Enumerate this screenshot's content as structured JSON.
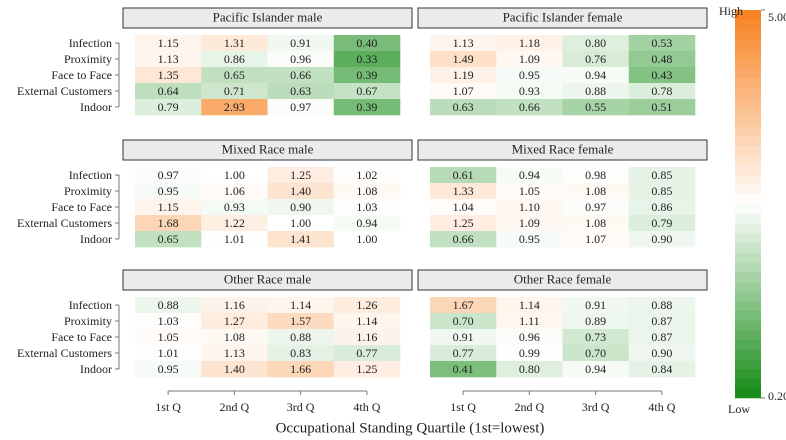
{
  "chart_data": {
    "type": "heatmap",
    "x_label": "Occupational Standing Quartile (1st=lowest)",
    "x_categories": [
      "1st Q",
      "2nd Q",
      "3rd Q",
      "4th Q"
    ],
    "y_categories": [
      "Infection",
      "Proximity",
      "Face to Face",
      "External Customers",
      "Indoor"
    ],
    "colorbar": {
      "high_label": "High",
      "low_label": "Low",
      "lim": [
        0.2,
        5
      ],
      "scale": "log",
      "ticks": [
        {
          "value": 5,
          "label": "5.00"
        },
        {
          "value": 0.2,
          "label": "0.20"
        }
      ],
      "colors": {
        "low": "#138a13",
        "mid": "#ffffff",
        "high": "#f7801e"
      }
    },
    "panels": [
      {
        "title": "Pacific Islander male",
        "values": [
          [
            1.15,
            1.31,
            0.91,
            0.4
          ],
          [
            1.13,
            0.86,
            0.96,
            0.33
          ],
          [
            1.35,
            0.65,
            0.66,
            0.39
          ],
          [
            0.64,
            0.71,
            0.63,
            0.67
          ],
          [
            0.79,
            2.93,
            0.97,
            0.39
          ]
        ],
        "value_labels": [
          [
            "1.15",
            "1.31",
            "0.91",
            "0.40"
          ],
          [
            "1.13",
            "0.86",
            "0.96",
            "0.33"
          ],
          [
            "1.35",
            "0.65",
            "0.66",
            "0.39"
          ],
          [
            "0.64",
            "0.71",
            "0.63",
            "0.67"
          ],
          [
            "0.79",
            "2.93",
            "0.97",
            "0.39"
          ]
        ]
      },
      {
        "title": "Pacific Islander female",
        "values": [
          [
            1.13,
            1.18,
            0.8,
            0.53
          ],
          [
            1.49,
            1.09,
            0.76,
            0.48
          ],
          [
            1.19,
            0.95,
            0.94,
            0.43
          ],
          [
            1.07,
            0.93,
            0.88,
            0.78
          ],
          [
            0.63,
            0.66,
            0.55,
            0.51
          ]
        ],
        "value_labels": [
          [
            "1.13",
            "1.18",
            "0.80",
            "0.53"
          ],
          [
            "1.49",
            "1.09",
            "0.76",
            "0.48"
          ],
          [
            "1.19",
            "0.95",
            "0.94",
            "0.43"
          ],
          [
            "1.07",
            "0.93",
            "0.88",
            "0.78"
          ],
          [
            "0.63",
            "0.66",
            "0.55",
            "0.51"
          ]
        ]
      },
      {
        "title": "Mixed Race male",
        "values": [
          [
            0.97,
            1,
            1.25,
            1.02
          ],
          [
            0.95,
            1.06,
            1.4,
            1.08
          ],
          [
            1.15,
            0.93,
            0.9,
            1.03
          ],
          [
            1.68,
            1.22,
            1,
            0.94
          ],
          [
            0.65,
            1.01,
            1.41,
            1
          ]
        ],
        "value_labels": [
          [
            "0.97",
            "1.00",
            "1.25",
            "1.02"
          ],
          [
            "0.95",
            "1.06",
            "1.40",
            "1.08"
          ],
          [
            "1.15",
            "0.93",
            "0.90",
            "1.03"
          ],
          [
            "1.68",
            "1.22",
            "1.00",
            "0.94"
          ],
          [
            "0.65",
            "1.01",
            "1.41",
            "1.00"
          ]
        ]
      },
      {
        "title": "Mixed Race female",
        "values": [
          [
            0.61,
            0.94,
            0.98,
            0.85
          ],
          [
            1.33,
            1.05,
            1.08,
            0.85
          ],
          [
            1.04,
            1.1,
            0.97,
            0.86
          ],
          [
            1.25,
            1.09,
            1.08,
            0.79
          ],
          [
            0.66,
            0.95,
            1.07,
            0.9
          ]
        ],
        "value_labels": [
          [
            "0.61",
            "0.94",
            "0.98",
            "0.85"
          ],
          [
            "1.33",
            "1.05",
            "1.08",
            "0.85"
          ],
          [
            "1.04",
            "1.10",
            "0.97",
            "0.86"
          ],
          [
            "1.25",
            "1.09",
            "1.08",
            "0.79"
          ],
          [
            "0.66",
            "0.95",
            "1.07",
            "0.90"
          ]
        ]
      },
      {
        "title": "Other Race male",
        "values": [
          [
            0.88,
            1.16,
            1.14,
            1.26
          ],
          [
            1.03,
            1.27,
            1.57,
            1.14
          ],
          [
            1.05,
            1.08,
            0.88,
            1.16
          ],
          [
            1.01,
            1.13,
            0.83,
            0.77
          ],
          [
            0.95,
            1.4,
            1.66,
            1.25
          ]
        ],
        "value_labels": [
          [
            "0.88",
            "1.16",
            "1.14",
            "1.26"
          ],
          [
            "1.03",
            "1.27",
            "1.57",
            "1.14"
          ],
          [
            "1.05",
            "1.08",
            "0.88",
            "1.16"
          ],
          [
            "1.01",
            "1.13",
            "0.83",
            "0.77"
          ],
          [
            "0.95",
            "1.40",
            "1.66",
            "1.25"
          ]
        ]
      },
      {
        "title": "Other Race female",
        "values": [
          [
            1.67,
            1.14,
            0.91,
            0.88
          ],
          [
            0.7,
            1.11,
            0.89,
            0.87
          ],
          [
            0.91,
            0.96,
            0.73,
            0.87
          ],
          [
            0.77,
            0.99,
            0.7,
            0.9
          ],
          [
            0.41,
            0.8,
            0.94,
            0.84
          ]
        ],
        "value_labels": [
          [
            "1.67",
            "1.14",
            "0.91",
            "0.88"
          ],
          [
            "0.70",
            "1.11",
            "0.89",
            "0.87"
          ],
          [
            "0.91",
            "0.96",
            "0.73",
            "0.87"
          ],
          [
            "0.77",
            "0.99",
            "0.70",
            "0.90"
          ],
          [
            "0.41",
            "0.80",
            "0.94",
            "0.84"
          ]
        ]
      }
    ]
  }
}
